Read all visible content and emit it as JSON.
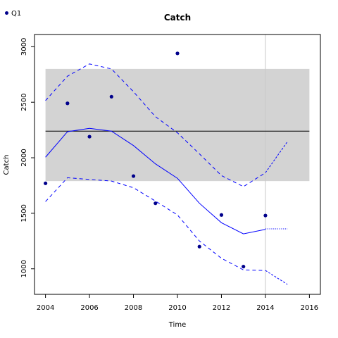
{
  "chart_data": {
    "type": "line",
    "title": "Catch",
    "xlabel": "Time",
    "ylabel": "Catch",
    "xlim": [
      2003.5,
      2016.5
    ],
    "ylim": [
      770,
      3110
    ],
    "xticks": [
      2004,
      2006,
      2008,
      2010,
      2012,
      2014,
      2016
    ],
    "yticks": [
      1000,
      1500,
      2000,
      2500,
      3000
    ],
    "reference_band": {
      "ymin": 1790,
      "ymax": 2800,
      "color": "#d3d3d3"
    },
    "reference_line": {
      "y": 2240,
      "color": "#000000"
    },
    "vertical_marker": {
      "x": 2014,
      "color": "#c8c8c8"
    },
    "legend": {
      "position": "top-left",
      "entries": [
        {
          "label": "Q1",
          "color": "#00008b"
        }
      ]
    },
    "observations": {
      "name": "Q1",
      "color": "#00008b",
      "x": [
        2004,
        2005,
        2006,
        2007,
        2008,
        2009,
        2010,
        2011,
        2012,
        2013,
        2014
      ],
      "y": [
        1770,
        2490,
        2190,
        2550,
        1835,
        1590,
        2940,
        1200,
        1485,
        1020,
        1480
      ]
    },
    "fit_line": {
      "color": "#0000ff",
      "x": [
        2004,
        2005,
        2006,
        2007,
        2008,
        2009,
        2010,
        2011,
        2012,
        2013,
        2014
      ],
      "y": [
        2005,
        2235,
        2265,
        2240,
        2110,
        1945,
        1815,
        1590,
        1415,
        1315,
        1355
      ]
    },
    "upper_ci": {
      "color": "#0000ff",
      "x": [
        2004,
        2005,
        2006,
        2007,
        2008,
        2009,
        2010,
        2011,
        2012,
        2013,
        2014
      ],
      "y": [
        2515,
        2735,
        2845,
        2800,
        2595,
        2370,
        2225,
        2035,
        1840,
        1740,
        1865
      ]
    },
    "lower_ci": {
      "color": "#0000ff",
      "x": [
        2004,
        2005,
        2006,
        2007,
        2008,
        2009,
        2010,
        2011,
        2012,
        2013,
        2014
      ],
      "y": [
        1605,
        1820,
        1805,
        1790,
        1730,
        1610,
        1485,
        1250,
        1095,
        990,
        985
      ]
    },
    "forecast_mean": {
      "x": [
        2014,
        2015
      ],
      "y": [
        1360,
        1360
      ]
    },
    "forecast_upper": {
      "x": [
        2014,
        2015
      ],
      "y": [
        1865,
        2145
      ]
    },
    "forecast_lower": {
      "x": [
        2014,
        2015
      ],
      "y": [
        985,
        860
      ]
    }
  }
}
